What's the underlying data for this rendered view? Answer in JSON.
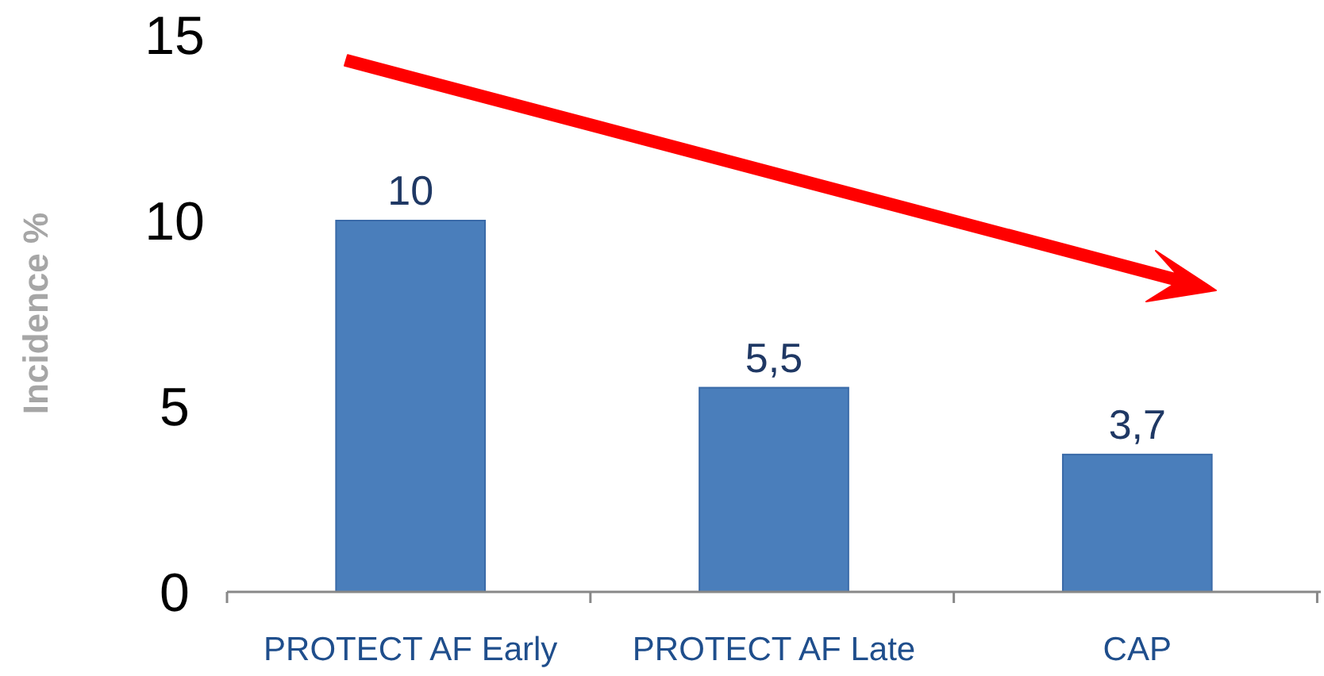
{
  "chart_data": {
    "type": "bar",
    "ylabel": "Incidence %",
    "categories": [
      "PROTECT AF Early",
      "PROTECT AF Late",
      "CAP"
    ],
    "values": [
      10,
      5.5,
      3.7
    ],
    "value_labels": [
      "10",
      "5,5",
      "3,7"
    ],
    "color": "#4a7ebb",
    "ylim": [
      0,
      15
    ],
    "yticks": [
      0,
      5,
      10,
      15
    ],
    "grid": false
  }
}
